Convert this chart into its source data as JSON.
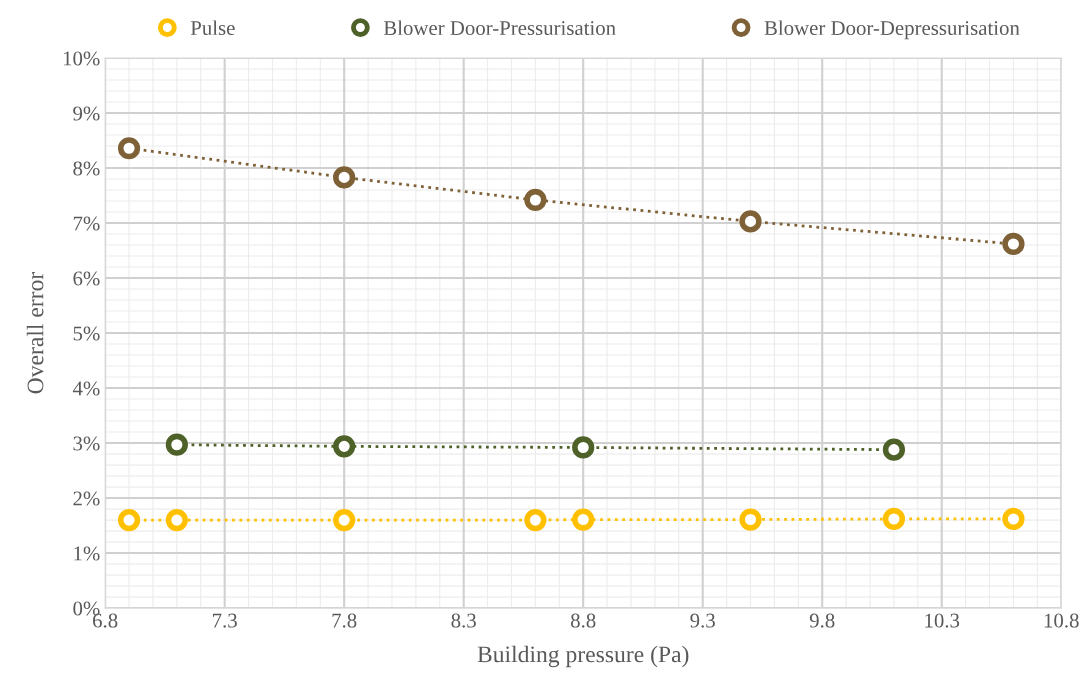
{
  "chart_data": {
    "type": "line",
    "xlabel": "Building pressure (Pa)",
    "ylabel": "Overall error",
    "xlim": [
      6.8,
      10.8
    ],
    "xticks": [
      6.8,
      7.3,
      7.8,
      8.3,
      8.8,
      9.3,
      9.8,
      10.3,
      10.8
    ],
    "ylim": [
      0,
      10
    ],
    "yticks": [
      {
        "value": 0,
        "label": "0%"
      },
      {
        "value": 1,
        "label": "1%"
      },
      {
        "value": 2,
        "label": "2%"
      },
      {
        "value": 3,
        "label": "3%"
      },
      {
        "value": 4,
        "label": "4%"
      },
      {
        "value": 5,
        "label": "5%"
      },
      {
        "value": 6,
        "label": "6%"
      },
      {
        "value": 7,
        "label": "7%"
      },
      {
        "value": 8,
        "label": "8%"
      },
      {
        "value": 9,
        "label": "9%"
      },
      {
        "value": 10,
        "label": "10%"
      }
    ],
    "grid": true,
    "legend": "top",
    "marker": "circle",
    "line_style": "dotted",
    "series": [
      {
        "name": "Pulse",
        "color": "#ffc000",
        "x": [
          6.9,
          7.1,
          7.8,
          8.6,
          8.8,
          9.5,
          10.1,
          10.6
        ],
        "values": [
          1.6,
          1.6,
          1.6,
          1.6,
          1.61,
          1.61,
          1.62,
          1.62
        ]
      },
      {
        "name": "Blower Door-Pressurisation",
        "color": "#4e6128",
        "x": [
          7.1,
          7.8,
          8.8,
          10.1
        ],
        "values": [
          2.97,
          2.94,
          2.92,
          2.88
        ]
      },
      {
        "name": "Blower Door-Depressurisation",
        "color": "#7f6137",
        "x": [
          6.9,
          7.8,
          8.6,
          9.5,
          10.6
        ],
        "values": [
          8.36,
          7.83,
          7.42,
          7.03,
          6.62
        ]
      }
    ]
  }
}
